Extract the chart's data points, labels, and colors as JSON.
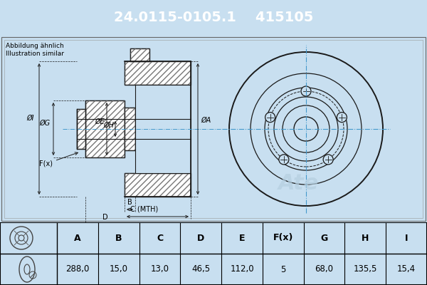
{
  "title_part_number": "24.0115-0105.1",
  "title_ref_number": "415105",
  "header_bg_color": "#0000cc",
  "header_text_color": "#ffffff",
  "body_bg_color": "#c8dff0",
  "table_bg_color": "#ffffff",
  "note_text": [
    "Abbildung ähnlich",
    "Illustration similar"
  ],
  "table_headers": [
    "A",
    "B",
    "C",
    "D",
    "E",
    "F(x)",
    "G",
    "H",
    "I"
  ],
  "table_values": [
    "288,0",
    "15,0",
    "13,0",
    "46,5",
    "112,0",
    "5",
    "68,0",
    "135,5",
    "15,4"
  ],
  "line_color": "#1a1a1a",
  "crosshair_color": "#4499cc",
  "watermark_color": "#aaccdd"
}
